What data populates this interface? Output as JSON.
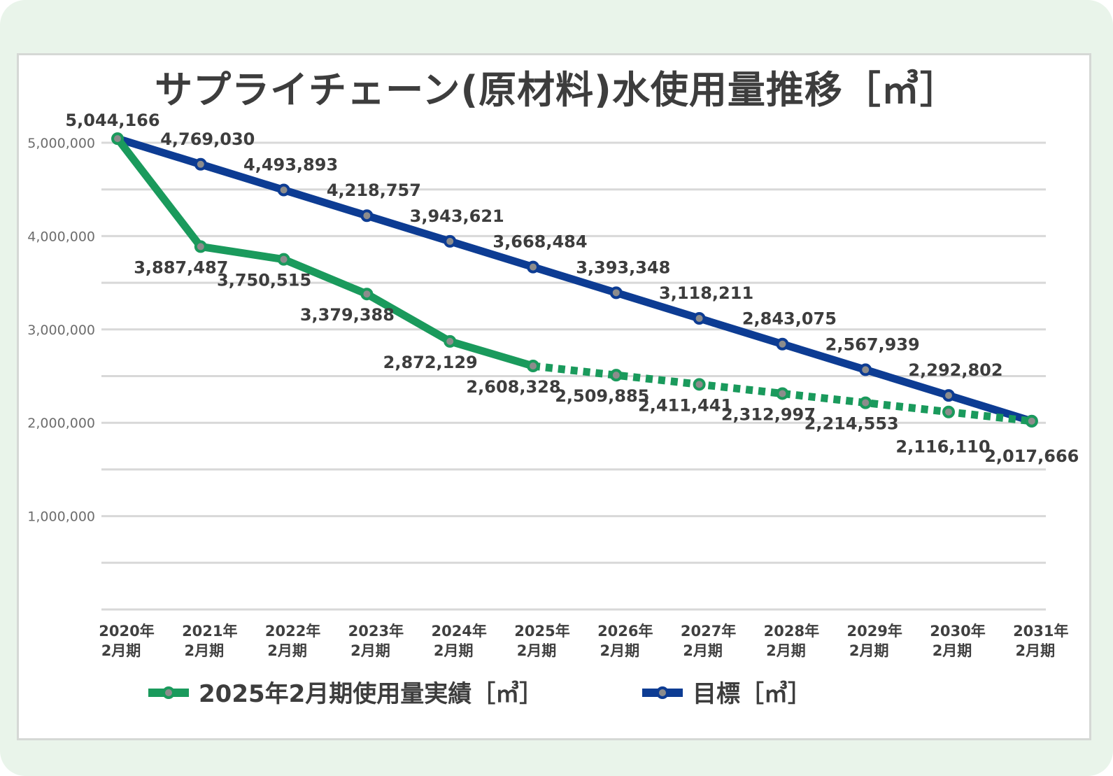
{
  "chart_data": {
    "type": "line",
    "title": "サプライチェーン(原材料)水使用量推移［㎥］",
    "categories": [
      [
        "2020年",
        "2月期"
      ],
      [
        "2021年",
        "2月期"
      ],
      [
        "2022年",
        "2月期"
      ],
      [
        "2023年",
        "2月期"
      ],
      [
        "2024年",
        "2月期"
      ],
      [
        "2025年",
        "2月期"
      ],
      [
        "2026年",
        "2月期"
      ],
      [
        "2027年",
        "2月期"
      ],
      [
        "2028年",
        "2月期"
      ],
      [
        "2029年",
        "2月期"
      ],
      [
        "2030年",
        "2月期"
      ],
      [
        "2031年",
        "2月期"
      ]
    ],
    "y_ticks": [
      {
        "value": 5000000,
        "label": "5,000,000"
      },
      {
        "value": 4000000,
        "label": "4,000,000"
      },
      {
        "value": 3000000,
        "label": "3,000,000"
      },
      {
        "value": 2000000,
        "label": "2,000,000"
      },
      {
        "value": 1000000,
        "label": "1,000,000"
      }
    ],
    "gridlines": [
      0,
      500000,
      1000000,
      1500000,
      2000000,
      2500000,
      3000000,
      3500000,
      4000000,
      4500000,
      5000000
    ],
    "ylim": [
      0,
      5000000
    ],
    "grid": true,
    "legend_position": "bottom",
    "series": [
      {
        "name": "2025年2月期使用量実績［㎥］",
        "color": "#1a9a5c",
        "actual_until_index": 5,
        "values": [
          5044166,
          3887487,
          3750515,
          3379388,
          2872129,
          2608328,
          2509885,
          2411441,
          2312997,
          2214553,
          2116110,
          2017666
        ],
        "labels": [
          "",
          "3,887,487",
          "3,750,515",
          "3,379,388",
          "2,872,129",
          "2,608,328",
          "2,509,885",
          "2,411,441",
          "2,312,997",
          "2,214,553",
          "2,116,110",
          "2,017,666"
        ]
      },
      {
        "name": "目標［㎥］",
        "color": "#0d3c93",
        "values": [
          5044166,
          4769030,
          4493893,
          4218757,
          3943621,
          3668484,
          3393348,
          3118211,
          2843075,
          2567939,
          2292802,
          2017666
        ],
        "labels": [
          "5,044,166",
          "4,769,030",
          "4,493,893",
          "4,218,757",
          "3,943,621",
          "3,668,484",
          "3,393,348",
          "3,118,211",
          "2,843,075",
          "2,567,939",
          "2,292,802",
          ""
        ]
      }
    ]
  }
}
